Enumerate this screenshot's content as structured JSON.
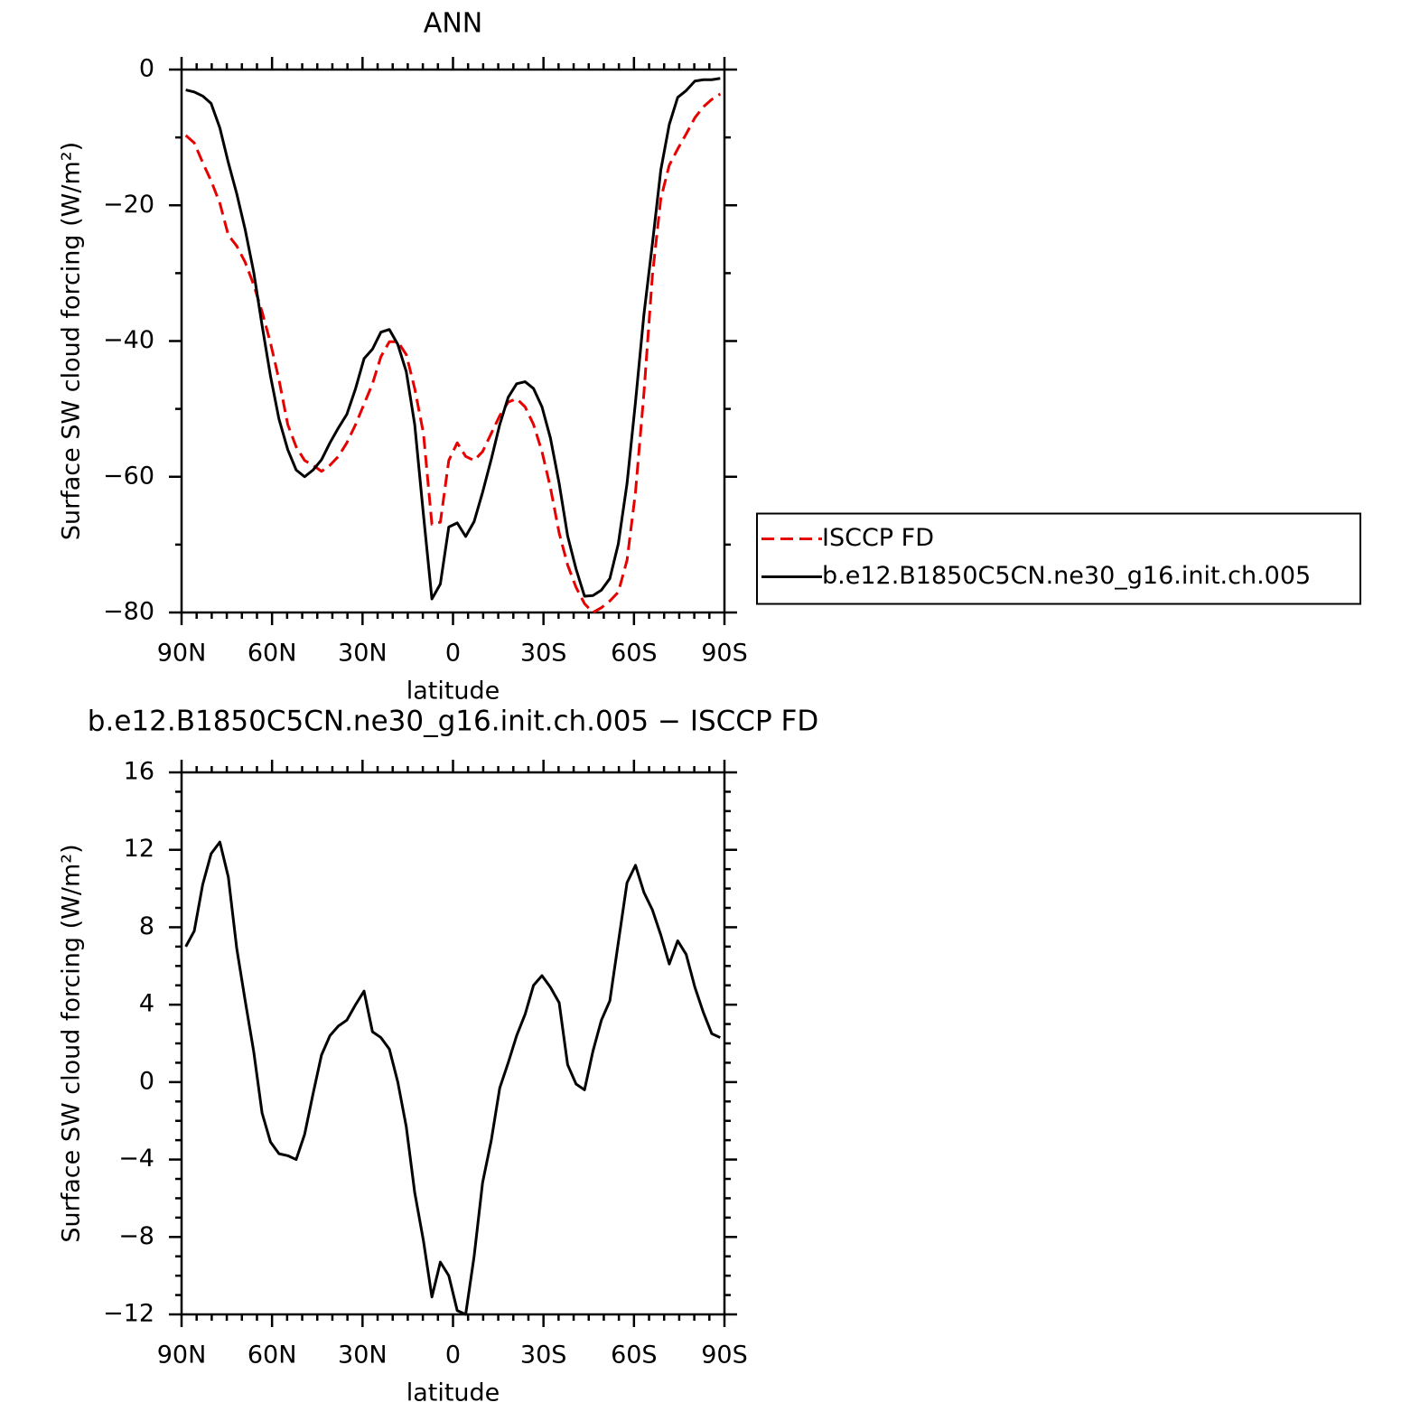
{
  "chart_data": [
    {
      "type": "line",
      "title": "ANN",
      "xlabel": "latitude",
      "ylabel": "Surface SW cloud forcing (W/m²)",
      "x": [
        88.6,
        85.8,
        83.0,
        80.2,
        77.3,
        74.5,
        71.7,
        68.9,
        66.1,
        63.3,
        60.5,
        57.7,
        54.8,
        52.0,
        49.2,
        46.4,
        43.6,
        40.8,
        38.0,
        35.2,
        32.3,
        29.5,
        26.7,
        23.9,
        21.1,
        18.3,
        15.5,
        12.7,
        9.8,
        7.0,
        4.2,
        1.4,
        -1.4,
        -4.2,
        -7.0,
        -9.8,
        -12.7,
        -15.5,
        -18.3,
        -21.1,
        -23.9,
        -26.7,
        -29.5,
        -32.3,
        -35.2,
        -38.0,
        -40.8,
        -43.6,
        -46.4,
        -49.2,
        -52.0,
        -54.8,
        -57.7,
        -60.5,
        -63.3,
        -66.1,
        -68.9,
        -71.7,
        -74.5,
        -77.3,
        -80.2,
        -83.0,
        -85.8,
        -88.6
      ],
      "series": [
        {
          "name": "ISCCP FD",
          "color": "#e60000",
          "linestyle": "dashed",
          "values": [
            -9.7,
            -10.8,
            -13.7,
            -16.4,
            -19.7,
            -24.4,
            -26.0,
            -28.4,
            -31.7,
            -35.7,
            -40.3,
            -45.7,
            -52.3,
            -55.6,
            -57.6,
            -58.3,
            -59.2,
            -58.3,
            -57.0,
            -55.0,
            -52.3,
            -49.3,
            -46.3,
            -42.3,
            -40.1,
            -40.1,
            -42.0,
            -47.0,
            -53.6,
            -67.0,
            -66.7,
            -57.6,
            -55.0,
            -57.0,
            -57.6,
            -56.3,
            -53.6,
            -51.0,
            -49.0,
            -48.5,
            -49.7,
            -52.3,
            -56.3,
            -61.6,
            -68.3,
            -73.0,
            -76.3,
            -78.7,
            -80.0,
            -79.3,
            -78.3,
            -77.0,
            -72.3,
            -62.3,
            -47.7,
            -30.4,
            -19.0,
            -14.1,
            -11.7,
            -9.5,
            -7.1,
            -5.5,
            -4.4,
            -3.6
          ]
        },
        {
          "name": "b.e12.B1850C5CN.ne30_g16.init.ch.005",
          "color": "#000000",
          "linestyle": "solid",
          "values": [
            -3.0,
            -3.3,
            -3.9,
            -5.0,
            -8.6,
            -13.7,
            -18.3,
            -23.6,
            -29.8,
            -37.7,
            -45.2,
            -51.5,
            -56.0,
            -59.0,
            -60.0,
            -59.0,
            -57.5,
            -55.0,
            -52.8,
            -50.8,
            -47.0,
            -42.6,
            -41.2,
            -38.7,
            -38.3,
            -40.5,
            -44.5,
            -52.3,
            -65.6,
            -78.0,
            -75.8,
            -67.4,
            -66.8,
            -68.8,
            -66.6,
            -62.3,
            -57.4,
            -52.3,
            -48.3,
            -46.3,
            -46.0,
            -47.0,
            -49.7,
            -54.3,
            -61.0,
            -68.7,
            -73.6,
            -77.6,
            -77.5,
            -76.7,
            -75.0,
            -69.9,
            -61.0,
            -49.0,
            -36.1,
            -25.7,
            -14.8,
            -8.1,
            -4.1,
            -3.1,
            -1.7,
            -1.5,
            -1.5,
            -1.3
          ]
        }
      ],
      "xlim": [
        90,
        -90
      ],
      "xticks": [
        {
          "value": 90,
          "label": "90N"
        },
        {
          "value": 60,
          "label": "60N"
        },
        {
          "value": 30,
          "label": "30N"
        },
        0,
        {
          "value": -30,
          "label": "30S"
        },
        {
          "value": -60,
          "label": "60S"
        },
        {
          "value": -90,
          "label": "90S"
        }
      ],
      "ylim": [
        -80,
        0
      ],
      "yticks": [
        0,
        {
          "value": -20,
          "label": "−20"
        },
        {
          "value": -40,
          "label": "−40"
        },
        {
          "value": -60,
          "label": "−60"
        },
        {
          "value": -80,
          "label": "−80"
        }
      ],
      "legend": "right",
      "grid": false
    },
    {
      "type": "line",
      "title": "b.e12.B1850C5CN.ne30_g16.init.ch.005 − ISCCP FD",
      "xlabel": "latitude",
      "ylabel": "Surface SW cloud forcing (W/m²)",
      "x": [
        88.6,
        85.8,
        83.0,
        80.2,
        77.3,
        74.5,
        71.7,
        68.9,
        66.1,
        63.3,
        60.5,
        57.7,
        54.8,
        52.0,
        49.2,
        46.4,
        43.6,
        40.8,
        38.0,
        35.2,
        32.3,
        29.5,
        26.7,
        23.9,
        21.1,
        18.3,
        15.5,
        12.7,
        9.8,
        7.0,
        4.2,
        1.4,
        -1.4,
        -4.2,
        -7.0,
        -9.8,
        -12.7,
        -15.5,
        -18.3,
        -21.1,
        -23.9,
        -26.7,
        -29.5,
        -32.3,
        -35.2,
        -38.0,
        -40.8,
        -43.6,
        -46.4,
        -49.2,
        -52.0,
        -54.8,
        -57.7,
        -60.5,
        -63.3,
        -66.1,
        -68.9,
        -71.7,
        -74.5,
        -77.3,
        -80.2,
        -83.0,
        -85.8,
        -88.6
      ],
      "values": [
        7.0,
        7.8,
        10.2,
        11.8,
        12.4,
        10.6,
        6.9,
        4.2,
        1.6,
        -1.6,
        -3.1,
        -3.7,
        -3.8,
        -4.0,
        -2.7,
        -0.6,
        1.4,
        2.4,
        2.9,
        3.2,
        4.0,
        4.7,
        2.6,
        2.3,
        1.7,
        0.0,
        -2.3,
        -5.7,
        -8.2,
        -11.1,
        -9.3,
        -10.0,
        -11.8,
        -12.0,
        -9.0,
        -5.2,
        -3.0,
        -0.3,
        1.0,
        2.4,
        3.5,
        5.0,
        5.5,
        4.9,
        4.1,
        0.9,
        -0.1,
        -0.4,
        1.6,
        3.2,
        4.2,
        7.2,
        10.3,
        11.2,
        9.8,
        8.9,
        7.6,
        6.1,
        7.3,
        6.6,
        4.9,
        3.6,
        2.5,
        2.3
      ],
      "color": "#000000",
      "xlim": [
        90,
        -90
      ],
      "xticks": [
        {
          "value": 90,
          "label": "90N"
        },
        {
          "value": 60,
          "label": "60N"
        },
        {
          "value": 30,
          "label": "30N"
        },
        0,
        {
          "value": -30,
          "label": "30S"
        },
        {
          "value": -60,
          "label": "60S"
        },
        {
          "value": -90,
          "label": "90S"
        }
      ],
      "ylim": [
        -12,
        16
      ],
      "yticks": [
        16,
        12,
        8,
        4,
        0,
        {
          "value": -4,
          "label": "−4"
        },
        {
          "value": -8,
          "label": "−8"
        },
        {
          "value": -12,
          "label": "−12"
        }
      ],
      "grid": false
    }
  ]
}
